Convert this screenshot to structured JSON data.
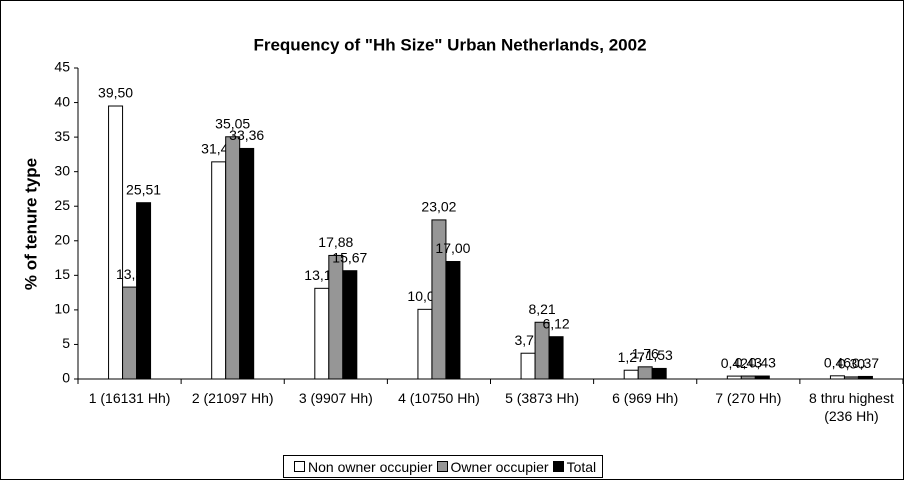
{
  "chart_data": {
    "type": "bar",
    "title": "Frequency of \"Hh Size\" Urban Netherlands, 2002",
    "y_label": "% of tenure type",
    "categories": [
      "1 (16131 Hh)",
      "2 (21097 Hh)",
      "3 (9907 Hh)",
      "4 (10750 Hh)",
      "5 (3873 Hh)",
      "6 (969 Hh)",
      "7 (270 Hh)",
      "8 thru highest (236 Hh)"
    ],
    "series": [
      {
        "name": "Non owner occupier",
        "color": "#ffffff",
        "values": [
          39.5,
          31.42,
          13.12,
          10.08,
          3.73,
          1.27,
          0.42,
          0.46
        ],
        "value_labels": [
          "39,50",
          "31,42",
          "13,12",
          "10,08",
          "3,73",
          "1,27",
          "0,42",
          "0,46"
        ]
      },
      {
        "name": "Owner occupier",
        "color": "#969696",
        "values": [
          13.3,
          35.05,
          17.88,
          23.02,
          8.21,
          1.76,
          0.43,
          0.3
        ],
        "value_labels": [
          "13,3",
          "35,05",
          "17,88",
          "23,02",
          "8,21",
          "1,76",
          "0,43",
          "0,30"
        ]
      },
      {
        "name": "Total",
        "color": "#000000",
        "values": [
          25.51,
          33.36,
          15.67,
          17.0,
          6.12,
          1.53,
          0.43,
          0.37
        ],
        "value_labels": [
          "25,51",
          "33,36",
          "15,67",
          "17,00",
          "6,12",
          "1,53",
          "0,43",
          "0,37"
        ]
      }
    ],
    "ylim": [
      0,
      45
    ],
    "yticks": [
      0,
      5,
      10,
      15,
      20,
      25,
      30,
      35,
      40,
      45
    ],
    "grid": false,
    "legend": "bottom"
  }
}
